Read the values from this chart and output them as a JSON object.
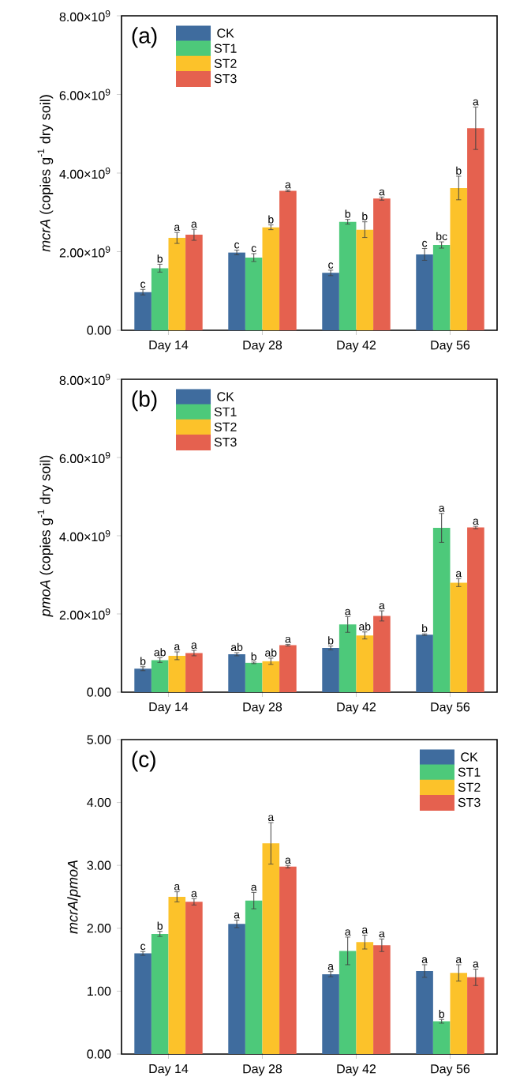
{
  "chart_data": [
    {
      "type": "bar",
      "title": "(a)",
      "ylabel": "*mcrA* (copies g$^{-1}$ dry soil)",
      "categories": [
        "Day 14",
        "Day 28",
        "Day 42",
        "Day 56"
      ],
      "legend": "top left",
      "ylim": [
        0,
        8000000000.0
      ],
      "yticks": [
        {
          "value": 0,
          "label": "0.00"
        },
        {
          "value": 2000000000.0,
          "label": "2.00×10$^{9}$"
        },
        {
          "value": 4000000000.0,
          "label": "4.00×10$^{9}$"
        },
        {
          "value": 6000000000.0,
          "label": "6.00×10$^{9}$"
        },
        {
          "value": 8000000000.0,
          "label": "8.00×10$^{9}$"
        }
      ],
      "series": [
        {
          "name": "CK",
          "color": "#3f6c9e",
          "values": [
            970000000.0,
            1980000000.0,
            1460000000.0,
            1930000000.0
          ],
          "errors": [
            70000000.0,
            60000000.0,
            70000000.0,
            150000000.0
          ],
          "value_labels": [
            "c",
            "c",
            "c",
            "c"
          ]
        },
        {
          "name": "ST1",
          "color": "#4dc97a",
          "values": [
            1580000000.0,
            1850000000.0,
            2760000000.0,
            2170000000.0
          ],
          "errors": [
            100000000.0,
            100000000.0,
            60000000.0,
            80000000.0
          ],
          "value_labels": [
            "b",
            "c",
            "b",
            "bc"
          ]
        },
        {
          "name": "ST2",
          "color": "#fcc22a",
          "values": [
            2350000000.0,
            2620000000.0,
            2560000000.0,
            3620000000.0
          ],
          "errors": [
            140000000.0,
            60000000.0,
            200000000.0,
            300000000.0
          ],
          "value_labels": [
            "a",
            "b",
            "b",
            "b"
          ]
        },
        {
          "name": "ST3",
          "color": "#e5614f",
          "values": [
            2430000000.0,
            3550000000.0,
            3350000000.0,
            5140000000.0
          ],
          "errors": [
            140000000.0,
            20000000.0,
            40000000.0,
            540000000.0
          ],
          "value_labels": [
            "a",
            "a",
            "a",
            "a"
          ]
        }
      ]
    },
    {
      "type": "bar",
      "title": "(b)",
      "ylabel": "*pmoA* (copies g$^{-1}$ dry soil)",
      "categories": [
        "Day 14",
        "Day 28",
        "Day 42",
        "Day 56"
      ],
      "legend": "top left",
      "ylim": [
        0,
        8000000000.0
      ],
      "yticks": [
        {
          "value": 0,
          "label": "0.00"
        },
        {
          "value": 2000000000.0,
          "label": "2.00×10$^{9}$"
        },
        {
          "value": 4000000000.0,
          "label": "4.00×10$^{9}$"
        },
        {
          "value": 6000000000.0,
          "label": "6.00×10$^{9}$"
        },
        {
          "value": 8000000000.0,
          "label": "8.00×10$^{9}$"
        }
      ],
      "series": [
        {
          "name": "CK",
          "color": "#3f6c9e",
          "values": [
            600000000.0,
            970000000.0,
            1130000000.0,
            1470000000.0
          ],
          "errors": [
            50000000.0,
            40000000.0,
            50000000.0,
            20000000.0
          ],
          "value_labels": [
            "b",
            "ab",
            "b",
            "b"
          ]
        },
        {
          "name": "ST1",
          "color": "#4dc97a",
          "values": [
            820000000.0,
            750000000.0,
            1730000000.0,
            4200000000.0
          ],
          "errors": [
            60000000.0,
            20000000.0,
            200000000.0,
            370000000.0
          ],
          "value_labels": [
            "ab",
            "b",
            "a",
            "a"
          ]
        },
        {
          "name": "ST2",
          "color": "#fcc22a",
          "values": [
            930000000.0,
            790000000.0,
            1450000000.0,
            2800000000.0
          ],
          "errors": [
            100000000.0,
            80000000.0,
            90000000.0,
            100000000.0
          ],
          "value_labels": [
            "a",
            "ab",
            "ab",
            "a"
          ]
        },
        {
          "name": "ST3",
          "color": "#e5614f",
          "values": [
            1000000000.0,
            1200000000.0,
            1950000000.0,
            4210000000.0
          ],
          "errors": [
            70000000.0,
            20000000.0,
            130000000.0,
            30000000.0
          ],
          "value_labels": [
            "a",
            "a",
            "a",
            "a"
          ]
        }
      ]
    },
    {
      "type": "bar",
      "title": "(c)",
      "ylabel": "*mcrA*/*pmoA*",
      "categories": [
        "Day 14",
        "Day 28",
        "Day 42",
        "Day 56"
      ],
      "legend": "top right",
      "ylim": [
        0,
        5
      ],
      "yticks": [
        {
          "value": 0,
          "label": "0.00"
        },
        {
          "value": 1,
          "label": "1.00"
        },
        {
          "value": 2,
          "label": "2.00"
        },
        {
          "value": 3,
          "label": "3.00"
        },
        {
          "value": 4,
          "label": "4.00"
        },
        {
          "value": 5,
          "label": "5.00"
        }
      ],
      "series": [
        {
          "name": "CK",
          "color": "#3f6c9e",
          "values": [
            1.6,
            2.07,
            1.27,
            1.32
          ],
          "errors": [
            0.03,
            0.06,
            0.04,
            0.1
          ],
          "value_labels": [
            "c",
            "a",
            "a",
            "a"
          ]
        },
        {
          "name": "ST1",
          "color": "#4dc97a",
          "values": [
            1.91,
            2.44,
            1.64,
            0.52
          ],
          "errors": [
            0.04,
            0.13,
            0.22,
            0.03
          ],
          "value_labels": [
            "b",
            "a",
            "a",
            "b"
          ]
        },
        {
          "name": "ST2",
          "color": "#fcc22a",
          "values": [
            2.5,
            3.35,
            1.78,
            1.29
          ],
          "errors": [
            0.08,
            0.33,
            0.11,
            0.13
          ],
          "value_labels": [
            "a",
            "a",
            "a",
            "a"
          ]
        },
        {
          "name": "ST3",
          "color": "#e5614f",
          "values": [
            2.42,
            2.98,
            1.73,
            1.22
          ],
          "errors": [
            0.05,
            0.02,
            0.1,
            0.13
          ],
          "value_labels": [
            "a",
            "a",
            "a",
            "a"
          ]
        }
      ]
    }
  ]
}
